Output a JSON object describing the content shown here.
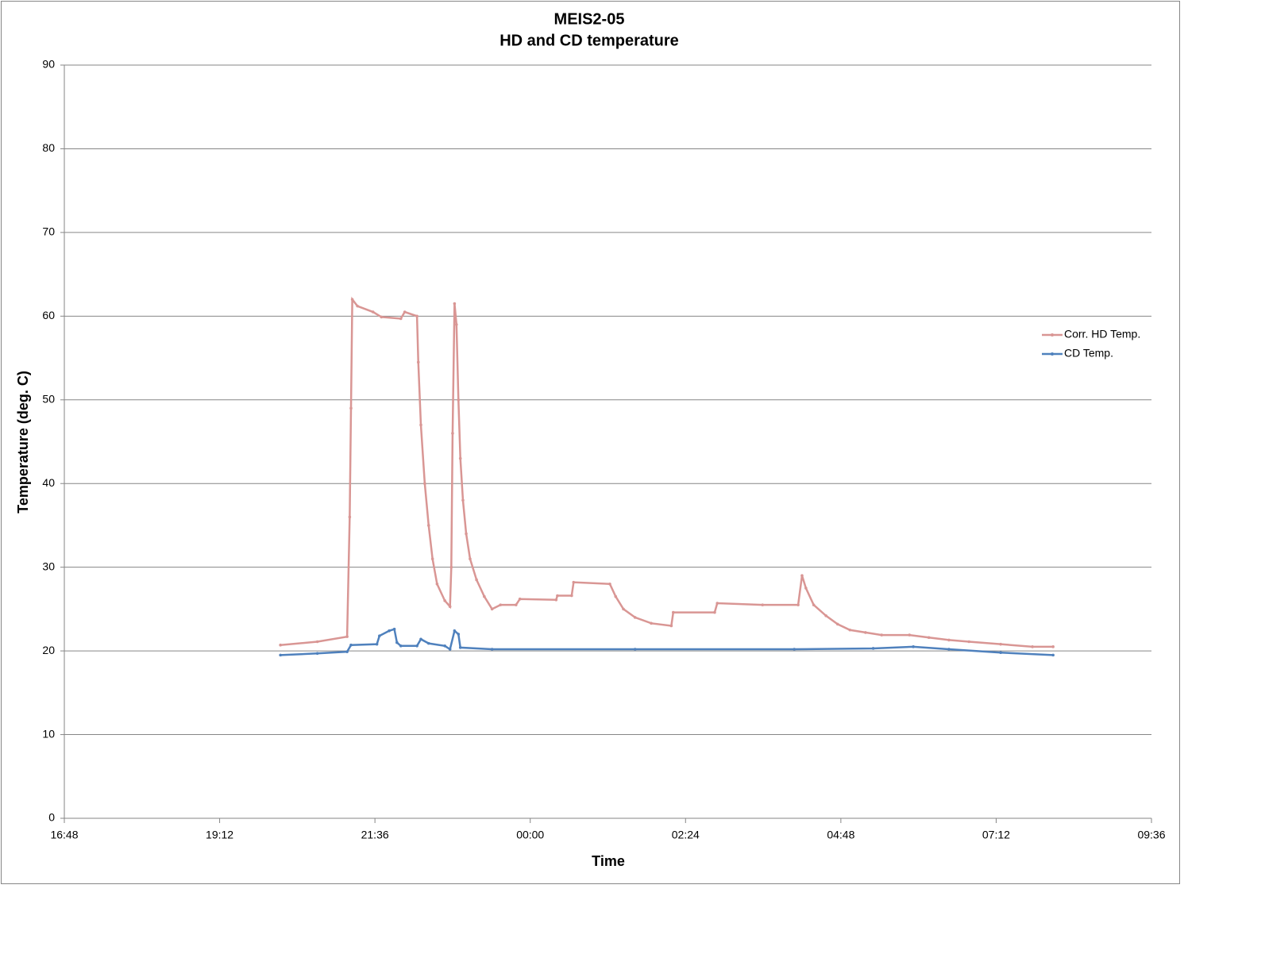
{
  "chart_data": {
    "type": "line",
    "title": "MEIS2-05",
    "subtitle": "HD and CD temperature",
    "x_label": "Time",
    "y_label": "Temperature (deg. C)",
    "xlim": [
      16.8,
      33.6
    ],
    "xticks": [
      {
        "value": 16.8,
        "label": "16:48"
      },
      {
        "value": 19.2,
        "label": "19:12"
      },
      {
        "value": 21.6,
        "label": "21:36"
      },
      {
        "value": 24,
        "label": "00:00"
      },
      {
        "value": 26.4,
        "label": "02:24"
      },
      {
        "value": 28.8,
        "label": "04:48"
      },
      {
        "value": 31.2,
        "label": "07:12"
      },
      {
        "value": 33.6,
        "label": "09:36"
      }
    ],
    "ylim": [
      0,
      90
    ],
    "yticks": [
      0,
      10,
      20,
      30,
      40,
      50,
      60,
      70,
      80,
      90
    ],
    "grid": true,
    "legend": "right",
    "series": [
      {
        "name": "Corr. HD Temp.",
        "color": "#d99694",
        "x": [
          20.14,
          20.71,
          21.17,
          21.21,
          21.23,
          21.25,
          21.33,
          21.57,
          21.7,
          22.0,
          22.06,
          22.25,
          22.27,
          22.31,
          22.37,
          22.43,
          22.49,
          22.56,
          22.68,
          22.76,
          22.78,
          22.8,
          22.83,
          22.86,
          22.89,
          22.92,
          22.96,
          23.01,
          23.07,
          23.17,
          23.29,
          23.41,
          23.54,
          23.78,
          23.84,
          24.4,
          24.42,
          24.64,
          24.67,
          25.23,
          25.32,
          25.44,
          25.62,
          25.87,
          26.18,
          26.21,
          26.85,
          26.89,
          27.59,
          28.14,
          28.2,
          28.26,
          28.38,
          28.57,
          28.75,
          28.94,
          29.18,
          29.43,
          29.86,
          30.16,
          30.47,
          30.78,
          31.27,
          31.76,
          32.08
        ],
        "values": [
          20.7,
          21.1,
          21.7,
          36,
          49,
          62,
          61.2,
          60.5,
          59.9,
          59.7,
          60.5,
          60.0,
          54.5,
          47,
          40,
          35,
          31,
          28,
          26,
          25.3,
          30,
          46,
          61.5,
          59,
          50,
          43,
          38,
          34,
          31,
          28.5,
          26.5,
          25,
          25.5,
          25.5,
          26.2,
          26.1,
          26.6,
          26.6,
          28.2,
          28.0,
          26.5,
          25,
          24,
          23.3,
          23.0,
          24.6,
          24.6,
          25.7,
          25.5,
          25.5,
          29,
          27.5,
          25.5,
          24.2,
          23.2,
          22.5,
          22.2,
          21.9,
          21.9,
          21.6,
          21.3,
          21.1,
          20.8,
          20.5,
          20.5
        ]
      },
      {
        "name": "CD Temp.",
        "color": "#4f81bd",
        "x": [
          20.14,
          20.71,
          21.17,
          21.23,
          21.63,
          21.67,
          21.82,
          21.9,
          21.94,
          22.0,
          22.25,
          22.31,
          22.43,
          22.68,
          22.76,
          22.83,
          22.89,
          22.92,
          23.41,
          25.62,
          28.08,
          29.3,
          29.92,
          30.47,
          31.27,
          32.08
        ],
        "values": [
          19.5,
          19.7,
          19.9,
          20.7,
          20.8,
          21.8,
          22.4,
          22.6,
          21,
          20.6,
          20.6,
          21.4,
          20.9,
          20.6,
          20.2,
          22.4,
          22.0,
          20.4,
          20.2,
          20.2,
          20.2,
          20.3,
          20.5,
          20.2,
          19.8,
          19.5
        ]
      }
    ]
  }
}
